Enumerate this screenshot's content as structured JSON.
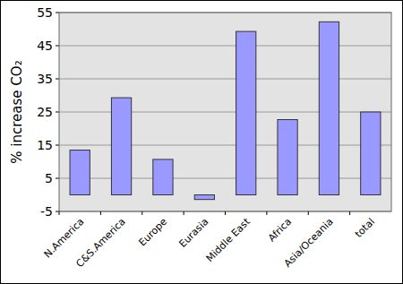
{
  "chart_data": {
    "type": "bar",
    "y_label": "% increase CO₂",
    "categories": [
      "N.America",
      "C&S.America",
      "Europe",
      "Eurasia",
      "Middle East",
      "Africa",
      "Asia/Oceania",
      "total"
    ],
    "values": [
      13.5,
      29.3,
      10.7,
      -1.4,
      49.3,
      22.7,
      52.2,
      25
    ],
    "color": "#9999ff",
    "ylim": [
      -5,
      55
    ],
    "yticks": [
      -5,
      5,
      15,
      25,
      35,
      45,
      55
    ],
    "grid": true
  }
}
